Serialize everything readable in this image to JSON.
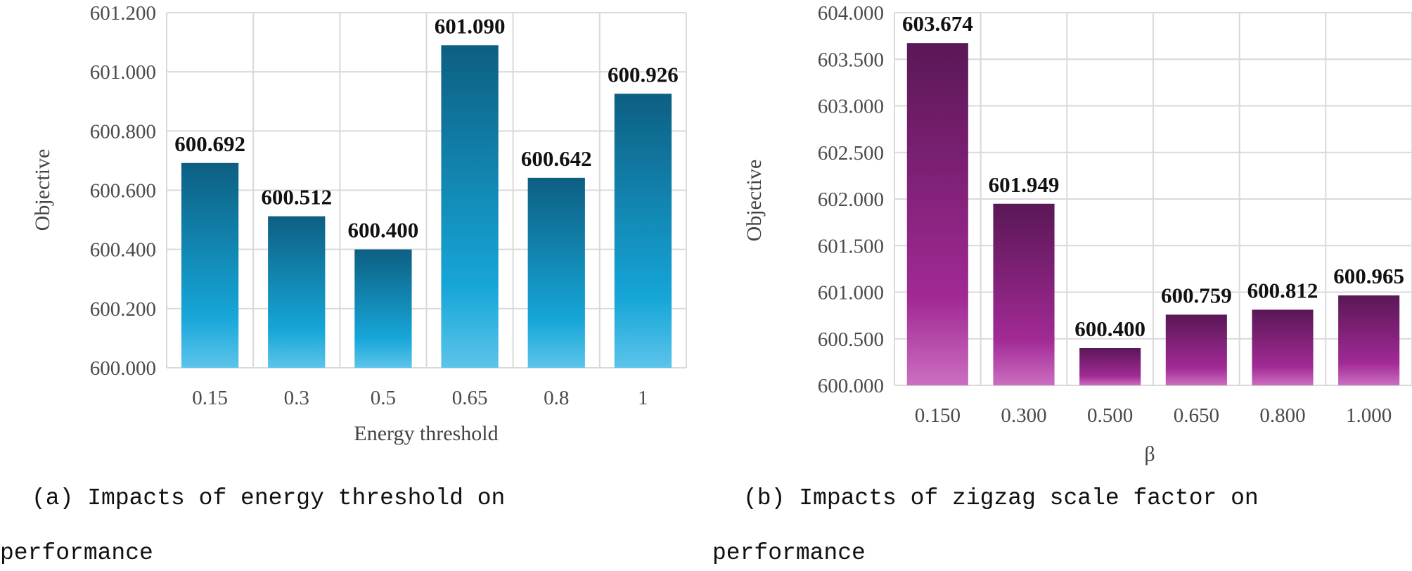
{
  "colors": {
    "panel_a_dark": "#0d5f82",
    "panel_a_mid": "#16a6d8",
    "panel_a_light": "#5cc4ea",
    "panel_b_dark": "#5a1756",
    "panel_b_mid": "#a12a95",
    "panel_b_light": "#cc6ec0",
    "grid": "#d9d9d9"
  },
  "chart_data": [
    {
      "type": "bar",
      "xlabel": "Energy threshold",
      "ylabel": "Objective",
      "categories": [
        "0.15",
        "0.3",
        "0.5",
        "0.65",
        "0.8",
        "1"
      ],
      "values": [
        600.692,
        600.512,
        600.4,
        601.09,
        600.642,
        600.926
      ],
      "data_labels": [
        "600.692",
        "600.512",
        "600.400",
        "601.090",
        "600.642",
        "600.926"
      ],
      "ylim": [
        600.0,
        601.2
      ],
      "yticks": [
        "600.000",
        "600.200",
        "600.400",
        "600.600",
        "600.800",
        "601.000",
        "601.200"
      ],
      "grid": true,
      "caption": [
        "(a)  Impacts  of  energy  threshold  on",
        "performance"
      ]
    },
    {
      "type": "bar",
      "xlabel": "β",
      "ylabel": "Objective",
      "categories": [
        "0.150",
        "0.300",
        "0.500",
        "0.650",
        "0.800",
        "1.000"
      ],
      "values": [
        603.674,
        601.949,
        600.4,
        600.759,
        600.812,
        600.965
      ],
      "data_labels": [
        "603.674",
        "601.949",
        "600.400",
        "600.759",
        "600.812",
        "600.965"
      ],
      "ylim": [
        600.0,
        604.0
      ],
      "yticks": [
        "600.000",
        "600.500",
        "601.000",
        "601.500",
        "602.000",
        "602.500",
        "603.000",
        "603.500",
        "604.000"
      ],
      "grid": true,
      "caption": [
        "(b)  Impacts  of  zigzag  scale  factor  on",
        "performance"
      ]
    }
  ]
}
